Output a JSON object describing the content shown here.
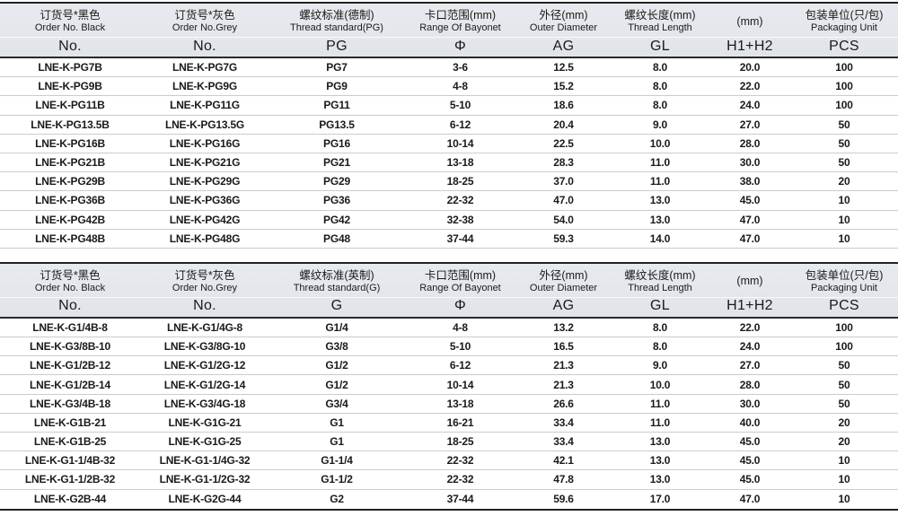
{
  "colors": {
    "header_bg": "#e3e6ea",
    "dark_border": "#232323",
    "row_line": "#c9ccd0",
    "text": "#1a1a1a"
  },
  "tables": [
    {
      "id": "pg-thread-table",
      "columns": [
        {
          "cn": "订货号*黑色",
          "en": "Order No. Black",
          "code": "No."
        },
        {
          "cn": "订货号*灰色",
          "en": "Order No.Grey",
          "code": "No."
        },
        {
          "cn": "螺纹标准(德制)",
          "en": "Thread standard(PG)",
          "code": "PG"
        },
        {
          "cn": "卡口范围(mm)",
          "en": "Range Of Bayonet",
          "code": "Φ"
        },
        {
          "cn": "外径(mm)",
          "en": "Outer Diameter",
          "code": "AG"
        },
        {
          "cn": "螺纹长度(mm)",
          "en": "Thread Length",
          "code": "GL"
        },
        {
          "cn": "(mm)",
          "en": "",
          "code": "H1+H2"
        },
        {
          "cn": "包装单位(只/包)",
          "en": "Packaging Unit",
          "code": "PCS"
        }
      ],
      "rows": [
        [
          "LNE-K-PG7B",
          "LNE-K-PG7G",
          "PG7",
          "3-6",
          "12.5",
          "8.0",
          "20.0",
          "100"
        ],
        [
          "LNE-K-PG9B",
          "LNE-K-PG9G",
          "PG9",
          "4-8",
          "15.2",
          "8.0",
          "22.0",
          "100"
        ],
        [
          "LNE-K-PG11B",
          "LNE-K-PG11G",
          "PG11",
          "5-10",
          "18.6",
          "8.0",
          "24.0",
          "100"
        ],
        [
          "LNE-K-PG13.5B",
          "LNE-K-PG13.5G",
          "PG13.5",
          "6-12",
          "20.4",
          "9.0",
          "27.0",
          "50"
        ],
        [
          "LNE-K-PG16B",
          "LNE-K-PG16G",
          "PG16",
          "10-14",
          "22.5",
          "10.0",
          "28.0",
          "50"
        ],
        [
          "LNE-K-PG21B",
          "LNE-K-PG21G",
          "PG21",
          "13-18",
          "28.3",
          "11.0",
          "30.0",
          "50"
        ],
        [
          "LNE-K-PG29B",
          "LNE-K-PG29G",
          "PG29",
          "18-25",
          "37.0",
          "11.0",
          "38.0",
          "20"
        ],
        [
          "LNE-K-PG36B",
          "LNE-K-PG36G",
          "PG36",
          "22-32",
          "47.0",
          "13.0",
          "45.0",
          "10"
        ],
        [
          "LNE-K-PG42B",
          "LNE-K-PG42G",
          "PG42",
          "32-38",
          "54.0",
          "13.0",
          "47.0",
          "10"
        ],
        [
          "LNE-K-PG48B",
          "LNE-K-PG48G",
          "PG48",
          "37-44",
          "59.3",
          "14.0",
          "47.0",
          "10"
        ]
      ]
    },
    {
      "id": "g-thread-table",
      "columns": [
        {
          "cn": "订货号*黑色",
          "en": "Order No. Black",
          "code": "No."
        },
        {
          "cn": "订货号*灰色",
          "en": "Order No.Grey",
          "code": "No."
        },
        {
          "cn": "螺纹标准(英制)",
          "en": "Thread standard(G)",
          "code": "G"
        },
        {
          "cn": "卡口范围(mm)",
          "en": "Range Of Bayonet",
          "code": "Φ"
        },
        {
          "cn": "外径(mm)",
          "en": "Outer Diameter",
          "code": "AG"
        },
        {
          "cn": "螺纹长度(mm)",
          "en": "Thread Length",
          "code": "GL"
        },
        {
          "cn": "(mm)",
          "en": "",
          "code": "H1+H2"
        },
        {
          "cn": "包装单位(只/包)",
          "en": "Packaging Unit",
          "code": "PCS"
        }
      ],
      "rows": [
        [
          "LNE-K-G1/4B-8",
          "LNE-K-G1/4G-8",
          "G1/4",
          "4-8",
          "13.2",
          "8.0",
          "22.0",
          "100"
        ],
        [
          "LNE-K-G3/8B-10",
          "LNE-K-G3/8G-10",
          "G3/8",
          "5-10",
          "16.5",
          "8.0",
          "24.0",
          "100"
        ],
        [
          "LNE-K-G1/2B-12",
          "LNE-K-G1/2G-12",
          "G1/2",
          "6-12",
          "21.3",
          "9.0",
          "27.0",
          "50"
        ],
        [
          "LNE-K-G1/2B-14",
          "LNE-K-G1/2G-14",
          "G1/2",
          "10-14",
          "21.3",
          "10.0",
          "28.0",
          "50"
        ],
        [
          "LNE-K-G3/4B-18",
          "LNE-K-G3/4G-18",
          "G3/4",
          "13-18",
          "26.6",
          "11.0",
          "30.0",
          "50"
        ],
        [
          "LNE-K-G1B-21",
          "LNE-K-G1G-21",
          "G1",
          "16-21",
          "33.4",
          "11.0",
          "40.0",
          "20"
        ],
        [
          "LNE-K-G1B-25",
          "LNE-K-G1G-25",
          "G1",
          "18-25",
          "33.4",
          "13.0",
          "45.0",
          "20"
        ],
        [
          "LNE-K-G1-1/4B-32",
          "LNE-K-G1-1/4G-32",
          "G1-1/4",
          "22-32",
          "42.1",
          "13.0",
          "45.0",
          "10"
        ],
        [
          "LNE-K-G1-1/2B-32",
          "LNE-K-G1-1/2G-32",
          "G1-1/2",
          "22-32",
          "47.8",
          "13.0",
          "45.0",
          "10"
        ],
        [
          "LNE-K-G2B-44",
          "LNE-K-G2G-44",
          "G2",
          "37-44",
          "59.6",
          "17.0",
          "47.0",
          "10"
        ]
      ]
    }
  ]
}
